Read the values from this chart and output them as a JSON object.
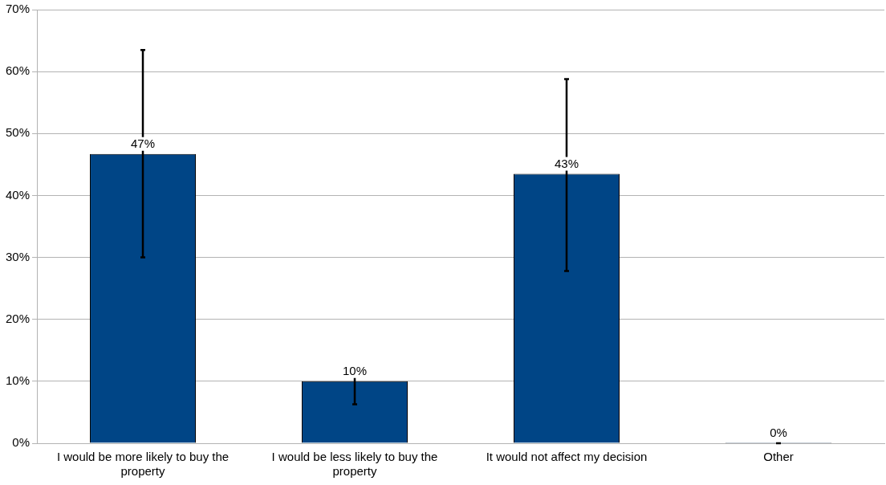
{
  "chart_data": {
    "type": "bar",
    "categories": [
      "I would be more likely to buy the property",
      "I would be less likely to buy the property",
      "It would not affect my decision",
      "Other"
    ],
    "values": [
      46.7,
      10,
      43.5,
      0
    ],
    "value_labels": [
      "47%",
      "10%",
      "43%",
      "0%"
    ],
    "errors": [
      [
        30,
        63.5
      ],
      [
        6.3,
        11
      ],
      [
        27.8,
        58.8
      ],
      [
        0,
        0
      ]
    ],
    "color": "#004586",
    "ylim": [
      0,
      70
    ],
    "yticks": [
      {
        "value": 0,
        "label": "0%"
      },
      {
        "value": 10,
        "label": "10%"
      },
      {
        "value": 20,
        "label": "20%"
      },
      {
        "value": 30,
        "label": "30%"
      },
      {
        "value": 40,
        "label": "40%"
      },
      {
        "value": 50,
        "label": "50%"
      },
      {
        "value": 60,
        "label": "60%"
      },
      {
        "value": 70,
        "label": "70%"
      }
    ],
    "grid": "y",
    "legend": false
  }
}
